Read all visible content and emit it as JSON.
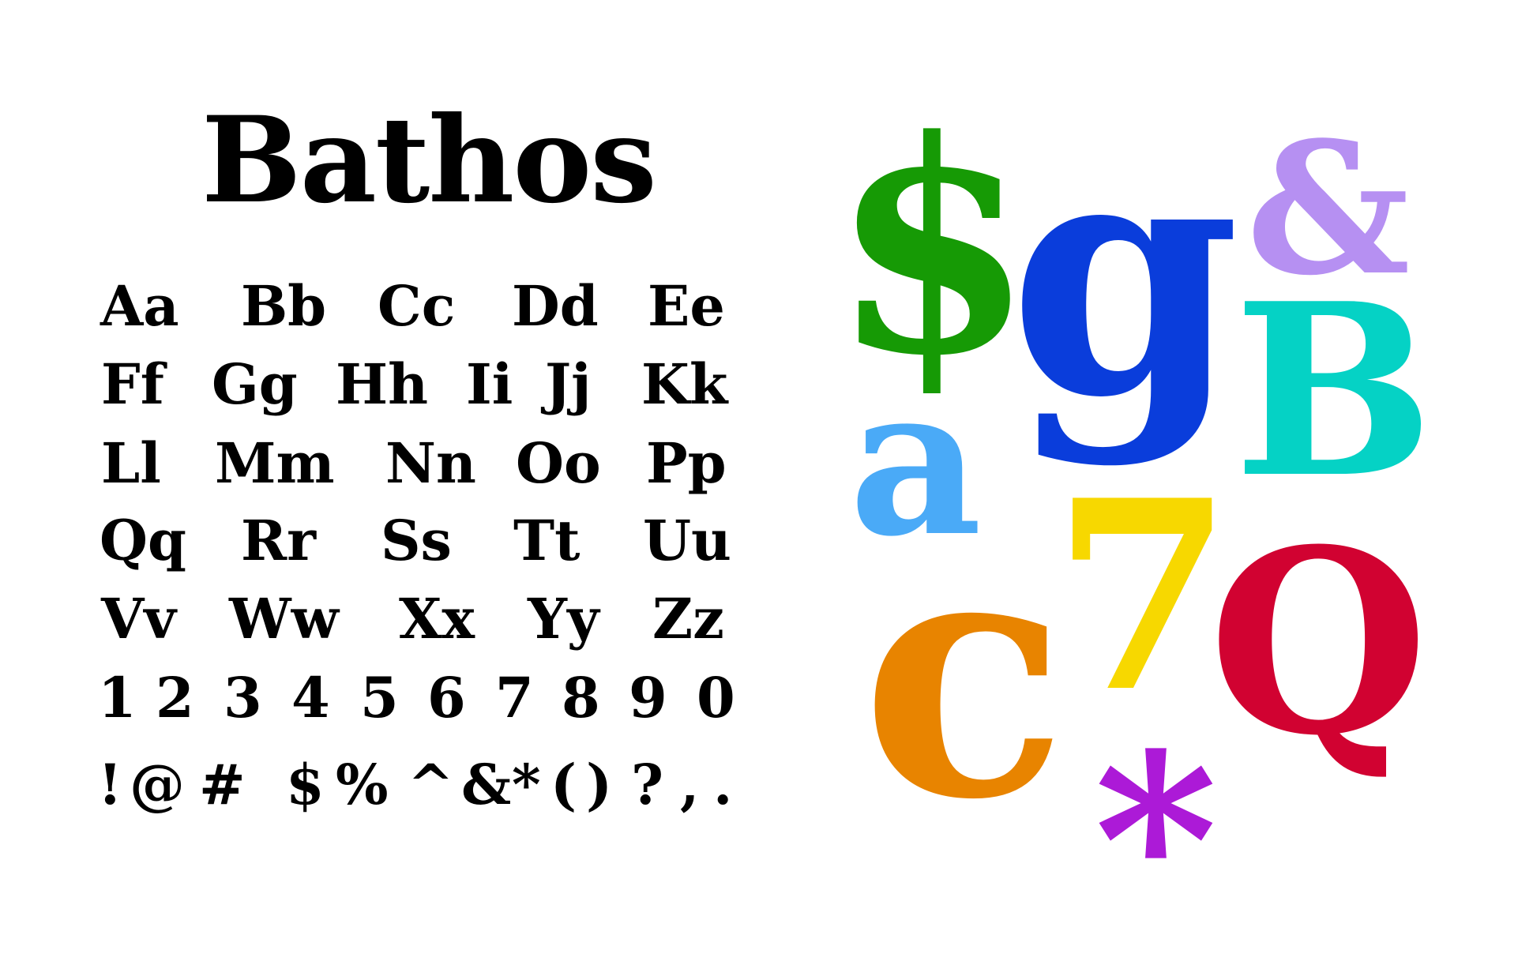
{
  "title": "Bathos",
  "rows": [
    [
      "Aa",
      "Bb",
      "Cc",
      "Dd",
      "Ee"
    ],
    [
      "Ff",
      "Gg",
      "Hh",
      "Ii",
      "Jj",
      "Kk"
    ],
    [
      "Ll",
      "Mm",
      "Nn",
      "Oo",
      "Pp"
    ],
    [
      "Qq",
      "Rr",
      "Ss",
      "Tt",
      "Uu"
    ],
    [
      "Vv",
      "Ww",
      "Xx",
      "Yy",
      "Zz"
    ],
    [
      "1",
      "2",
      "3",
      "4",
      "5",
      "6",
      "7",
      "8",
      "9",
      "0"
    ],
    [
      "!",
      "@",
      "#",
      "$",
      "%",
      "^",
      "&",
      "*",
      "(",
      ")",
      "?",
      ",",
      "."
    ]
  ],
  "showcase": [
    {
      "char": "$",
      "color": "#169a05"
    },
    {
      "char": "g",
      "color": "#0a3ddb"
    },
    {
      "char": "&",
      "color": "#b690f2"
    },
    {
      "char": "B",
      "color": "#05d2c5"
    },
    {
      "char": "a",
      "color": "#4aaaf7"
    },
    {
      "char": "7",
      "color": "#f7d800"
    },
    {
      "char": "c",
      "color": "#e88400"
    },
    {
      "char": "Q",
      "color": "#d10231"
    },
    {
      "char": "*",
      "color": "#ac1ad7"
    }
  ]
}
